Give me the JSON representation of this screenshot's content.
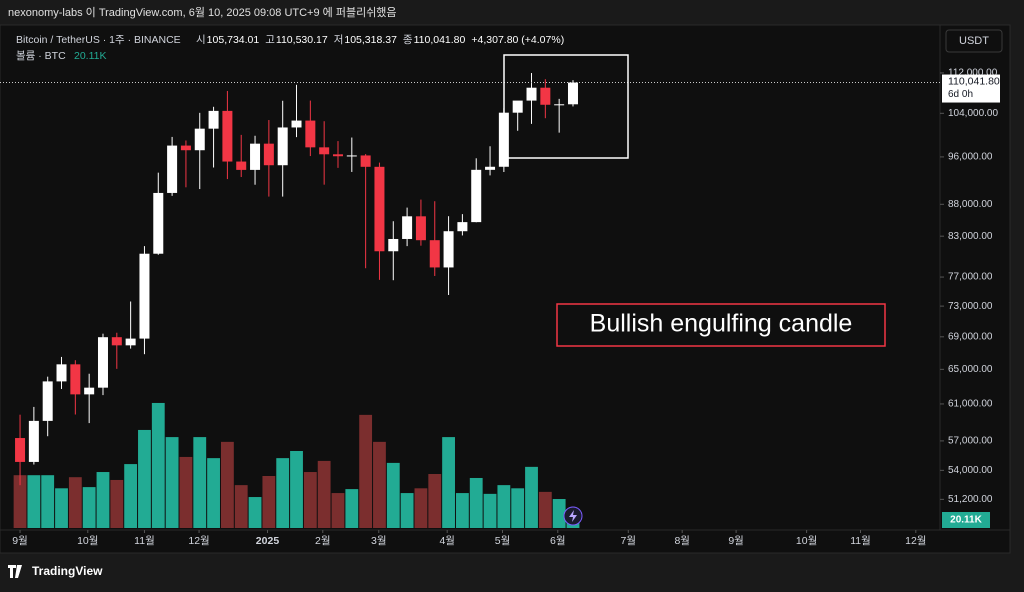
{
  "header": {
    "published": "nexonomy-labs 이 TradingView.com, 6월 10, 2025 09:08 UTC+9 에 퍼블리쉬했음"
  },
  "chart_data": {
    "type": "candlestick",
    "symbol": "Bitcoin / TetherUS · 1주 · BINANCE",
    "ohlc_names": [
      "시",
      "고",
      "저",
      "종"
    ],
    "ohlc_value_labels": [
      "105,734.01",
      "110,530.17",
      "105,318.37",
      "110,041.80"
    ],
    "change_label": "+4,307.80 (+4.07%)",
    "volume_name": "볼륨 · BTC",
    "volume_value_label": "20.11K",
    "currency": "USDT",
    "last_price_label": "110,041.80",
    "countdown": "6d 0h",
    "annotation": "Bullish engulfing candle",
    "brand": "TradingView",
    "log_scale": true,
    "up_color": "#ffffff",
    "down_color": "#f23645",
    "volume_up_color": "#22ab94",
    "volume_down_color": "#7b2e2e",
    "open": [
      57301,
      54842,
      59132,
      63578,
      65602,
      62083,
      62851,
      68952,
      67930,
      68775,
      80370,
      89855,
      98017,
      97185,
      101109,
      104463,
      95186,
      93738,
      98363,
      94545,
      101331,
      102620,
      97700,
      96462,
      96118,
      96258,
      94270,
      80734,
      82574,
      86082,
      82390,
      78370,
      83760,
      85170,
      93749,
      94277,
      104118,
      106454,
      109004,
      105642,
      105734.01
    ],
    "high": [
      59810,
      60670,
      64133,
      66500,
      66100,
      64478,
      69400,
      69519,
      73620,
      81500,
      93265,
      99588,
      98935,
      104088,
      105250,
      108353,
      99962,
      99800,
      102724,
      106422,
      109588,
      106457,
      102500,
      98826,
      99475,
      96500,
      95000,
      85309,
      87470,
      88765,
      88500,
      86100,
      86429,
      95758,
      97895,
      104984,
      105819,
      111980,
      110718,
      106794,
      110530.17
    ],
    "low": [
      52550,
      54583,
      57493,
      62700,
      59828,
      58895,
      62000,
      65060,
      67522,
      66835,
      80216,
      89376,
      90791,
      90500,
      94150,
      92175,
      92520,
      91220,
      89256,
      89256,
      99550,
      96150,
      91231,
      94088,
      93388,
      78258,
      76606,
      76555,
      81500,
      81565,
      77153,
      74508,
      83111,
      85144,
      92800,
      93377,
      100718,
      102000,
      103068,
      100372,
      105318.37
    ],
    "close": [
      54842,
      59132,
      63578,
      65602,
      62083,
      62851,
      68952,
      67930,
      68775,
      80370,
      89855,
      98017,
      97185,
      101109,
      104463,
      95186,
      93738,
      98363,
      94545,
      101331,
      102620,
      97700,
      96462,
      96118,
      96258,
      94270,
      80734,
      82574,
      86082,
      82390,
      78370,
      83760,
      85170,
      93749,
      94277,
      104118,
      106454,
      109004,
      105642,
      105734,
      110041.8
    ],
    "volume": [
      133000,
      133000,
      133000,
      100000,
      128000,
      103000,
      141000,
      121000,
      161000,
      247000,
      315000,
      229000,
      179000,
      229000,
      176000,
      217000,
      108000,
      78000,
      131000,
      176000,
      194000,
      141000,
      169000,
      88000,
      98000,
      285000,
      217000,
      164000,
      88000,
      100000,
      136000,
      229000,
      88000,
      126000,
      86000,
      108000,
      100000,
      154000,
      91000,
      73000,
      20110
    ],
    "vlim": [
      0,
      330000
    ],
    "xlim": [
      -1.45,
      66.55
    ],
    "ylim": [
      48400,
      122300
    ],
    "xticks": [
      {
        "value": 0,
        "label": "9월"
      },
      {
        "value": 4.9,
        "label": "10월"
      },
      {
        "value": 9.0,
        "label": "11월"
      },
      {
        "value": 12.95,
        "label": "12월"
      },
      {
        "value": 17.9,
        "label": "2025"
      },
      {
        "value": 21.9,
        "label": "2월"
      },
      {
        "value": 25.95,
        "label": "3월"
      },
      {
        "value": 30.9,
        "label": "4월"
      },
      {
        "value": 34.9,
        "label": "5월"
      },
      {
        "value": 38.9,
        "label": "6월"
      },
      {
        "value": 44.0,
        "label": "7월"
      },
      {
        "value": 47.9,
        "label": "8월"
      },
      {
        "value": 51.8,
        "label": "9월"
      },
      {
        "value": 56.9,
        "label": "10월"
      },
      {
        "value": 60.8,
        "label": "11월"
      },
      {
        "value": 64.8,
        "label": "12월"
      }
    ],
    "yticks": [
      {
        "value": 112000,
        "label": "112,000.00"
      },
      {
        "value": 104000,
        "label": "104,000.00"
      },
      {
        "value": 96000,
        "label": "96,000.00"
      },
      {
        "value": 88000,
        "label": "88,000.00"
      },
      {
        "value": 83000,
        "label": "83,000.00"
      },
      {
        "value": 77000,
        "label": "77,000.00"
      },
      {
        "value": 73000,
        "label": "73,000.00"
      },
      {
        "value": 69000,
        "label": "69,000.00"
      },
      {
        "value": 65000,
        "label": "65,000.00"
      },
      {
        "value": 61000,
        "label": "61,000.00"
      },
      {
        "value": 57000,
        "label": "57,000.00"
      },
      {
        "value": 54000,
        "label": "54,000.00"
      },
      {
        "value": 51200,
        "label": "51,200.00"
      }
    ]
  }
}
